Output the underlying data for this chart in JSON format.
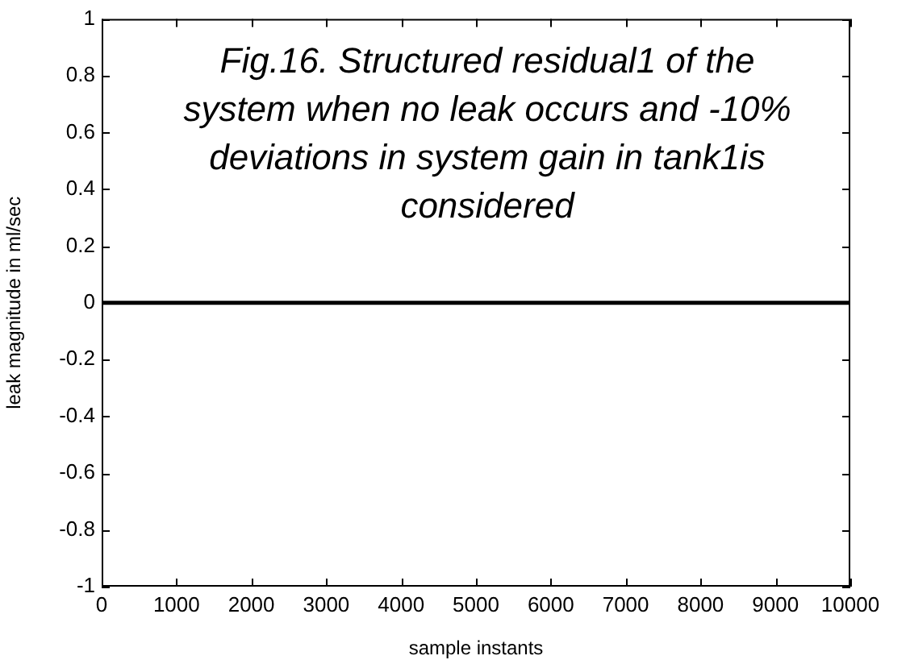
{
  "chart_data": {
    "type": "line",
    "title": "Fig.16. Structured residual1 of the system when no leak occurs and -10% deviations in system gain in tank1is considered",
    "xlabel": "sample instants",
    "ylabel": "leak magnitude in ml/sec",
    "x": [
      0,
      10000
    ],
    "series": [
      {
        "color": "#000000",
        "values": [
          0,
          0
        ]
      }
    ],
    "xlim": [
      0,
      10000
    ],
    "xticks": [
      0,
      1000,
      2000,
      3000,
      4000,
      5000,
      6000,
      7000,
      8000,
      9000,
      10000
    ],
    "ylim": [
      -1,
      1
    ],
    "yticks": [
      -1,
      -0.8,
      -0.6,
      -0.4,
      -0.2,
      0,
      0.2,
      0.4,
      0.6,
      0.8,
      1
    ],
    "grid": false,
    "legend": false,
    "marker": "none",
    "line_style": "solid"
  }
}
